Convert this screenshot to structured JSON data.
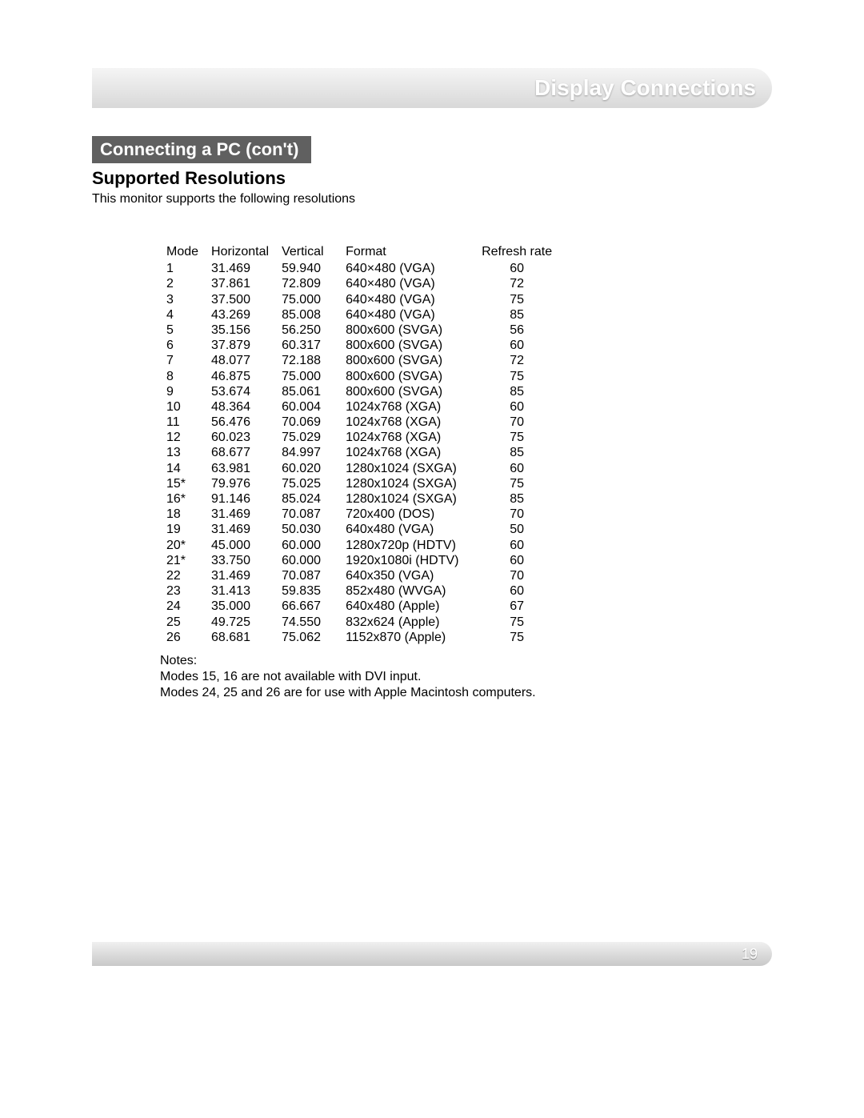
{
  "header": {
    "title": "Display Connections"
  },
  "section": {
    "label": "Connecting a PC (con't)"
  },
  "subheading": "Supported Resolutions",
  "intro": "This monitor supports the following resolutions",
  "table": {
    "columns": [
      "Mode",
      "Horizontal",
      "Vertical",
      "Format",
      "Refresh rate"
    ],
    "rows": [
      [
        "1",
        "31.469",
        "59.940",
        "640×480 (VGA)",
        "60"
      ],
      [
        "2",
        "37.861",
        "72.809",
        "640×480 (VGA)",
        "72"
      ],
      [
        "3",
        "37.500",
        "75.000",
        "640×480 (VGA)",
        "75"
      ],
      [
        "4",
        "43.269",
        "85.008",
        "640×480 (VGA)",
        "85"
      ],
      [
        "5",
        "35.156",
        "56.250",
        "800x600 (SVGA)",
        "56"
      ],
      [
        "6",
        "37.879",
        "60.317",
        "800x600 (SVGA)",
        "60"
      ],
      [
        "7",
        "48.077",
        "72.188",
        "800x600 (SVGA)",
        "72"
      ],
      [
        "8",
        "46.875",
        "75.000",
        "800x600 (SVGA)",
        "75"
      ],
      [
        "9",
        "53.674",
        "85.061",
        "800x600 (SVGA)",
        "85"
      ],
      [
        "10",
        "48.364",
        "60.004",
        "1024x768 (XGA)",
        "60"
      ],
      [
        "11",
        "56.476",
        "70.069",
        "1024x768 (XGA)",
        "70"
      ],
      [
        "12",
        "60.023",
        "75.029",
        "1024x768 (XGA)",
        "75"
      ],
      [
        "13",
        "68.677",
        "84.997",
        "1024x768 (XGA)",
        "85"
      ],
      [
        "14",
        "63.981",
        "60.020",
        "1280x1024 (SXGA)",
        "60"
      ],
      [
        "15*",
        "79.976",
        "75.025",
        "1280x1024 (SXGA)",
        "75"
      ],
      [
        "16*",
        "91.146",
        "85.024",
        "1280x1024 (SXGA)",
        "85"
      ],
      [
        "18",
        "31.469",
        "70.087",
        "720x400 (DOS)",
        "70"
      ],
      [
        "19",
        "31.469",
        "50.030",
        "640x480 (VGA)",
        "50"
      ],
      [
        "20*",
        "45.000",
        "60.000",
        "1280x720p (HDTV)",
        "60"
      ],
      [
        "21*",
        "33.750",
        "60.000",
        "1920x1080i (HDTV)",
        "60"
      ],
      [
        "22",
        "31.469",
        "70.087",
        "640x350 (VGA)",
        "70"
      ],
      [
        "23",
        "31.413",
        "59.835",
        "852x480 (WVGA)",
        "60"
      ],
      [
        "24",
        "35.000",
        "66.667",
        "640x480 (Apple)",
        "67"
      ],
      [
        "25",
        "49.725",
        "74.550",
        "832x624 (Apple)",
        "75"
      ],
      [
        "26",
        "68.681",
        "75.062",
        "1152x870 (Apple)",
        "75"
      ]
    ]
  },
  "notes": {
    "label": "Notes:",
    "lines": [
      "Modes 15, 16 are not available with DVI input.",
      "Modes 24, 25 and 26 are for use with Apple Macintosh computers."
    ]
  },
  "footer": {
    "page": "19"
  }
}
